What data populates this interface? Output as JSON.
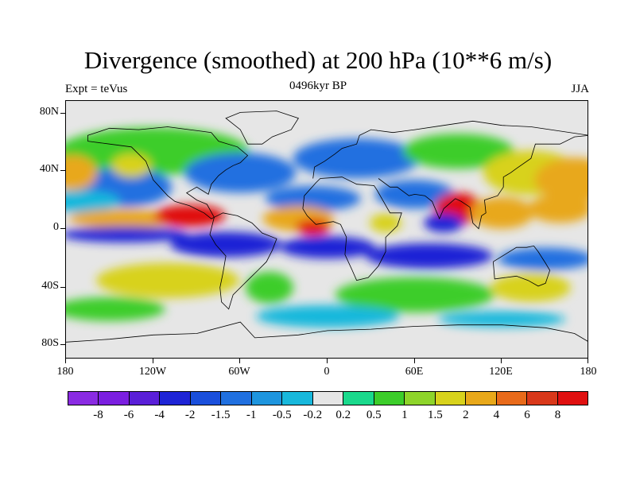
{
  "title": "Divergence (smoothed) at 200 hPa (10**6 m/s)",
  "subtitle_left": "Expt = teVus",
  "subtitle_center": "0496kyr BP",
  "subtitle_right": "JJA",
  "lat_labels": [
    "80N",
    "40N",
    "0",
    "40S",
    "80S"
  ],
  "lon_labels": [
    "180",
    "120W",
    "60W",
    "0",
    "60E",
    "120E",
    "180"
  ],
  "colorbar": {
    "labels": [
      "-8",
      "-6",
      "-4",
      "-2",
      "-1.5",
      "-1",
      "-0.5",
      "-0.2",
      "0.2",
      "0.5",
      "1",
      "1.5",
      "2",
      "4",
      "6",
      "8"
    ],
    "colors": [
      "#8a2be2",
      "#7b1fe0",
      "#5a1fd8",
      "#1e24d6",
      "#1a4fdc",
      "#2070e0",
      "#1e95de",
      "#18b8dc",
      "#e6e6e6",
      "#1ad98c",
      "#3ccd2a",
      "#8ed42a",
      "#d8d21c",
      "#e8a81a",
      "#e86a1a",
      "#d9381a",
      "#e01010"
    ]
  },
  "map_colors": {
    "ocean_background": "#e6e6e6",
    "strong_convergence": "#1e24d6",
    "moderate_convergence": "#2070e0",
    "weak_convergence": "#18b8dc",
    "weak_divergence": "#3ccd2a",
    "moderate_divergence": "#d8d21c",
    "strong_divergence": "#e8a81a",
    "very_strong_divergence": "#e01010",
    "coastline": "#000000"
  }
}
